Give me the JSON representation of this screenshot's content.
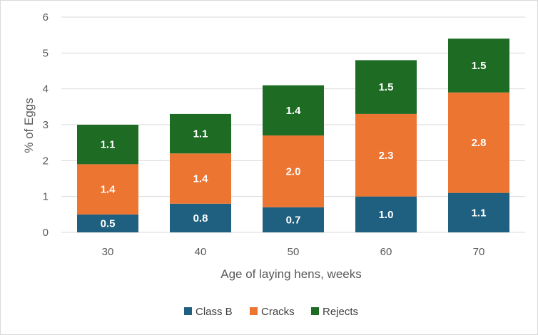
{
  "chart_data": {
    "type": "bar",
    "stacked": true,
    "title": "",
    "xlabel": "Age of laying hens, weeks",
    "ylabel": "% of Eggs",
    "categories": [
      "30",
      "40",
      "50",
      "60",
      "70"
    ],
    "ylim": [
      0,
      6
    ],
    "yticks": [
      "0",
      "1",
      "2",
      "3",
      "4",
      "5",
      "6"
    ],
    "grid": true,
    "legend_position": "bottom",
    "series": [
      {
        "name": "Class B",
        "color": "#1f5f7f",
        "values": [
          0.5,
          0.8,
          0.7,
          1.0,
          1.1
        ],
        "labels": [
          "0.5",
          "0.8",
          "0.7",
          "1.0",
          "1.1"
        ]
      },
      {
        "name": "Cracks",
        "color": "#ed7532",
        "values": [
          1.4,
          1.4,
          2.0,
          2.3,
          2.8
        ],
        "labels": [
          "1.4",
          "1.4",
          "2.0",
          "2.3",
          "2.8"
        ]
      },
      {
        "name": "Rejects",
        "color": "#1e6b24",
        "values": [
          1.1,
          1.1,
          1.4,
          1.5,
          1.5
        ],
        "labels": [
          "1.1",
          "1.1",
          "1.4",
          "1.5",
          "1.5"
        ]
      }
    ]
  }
}
